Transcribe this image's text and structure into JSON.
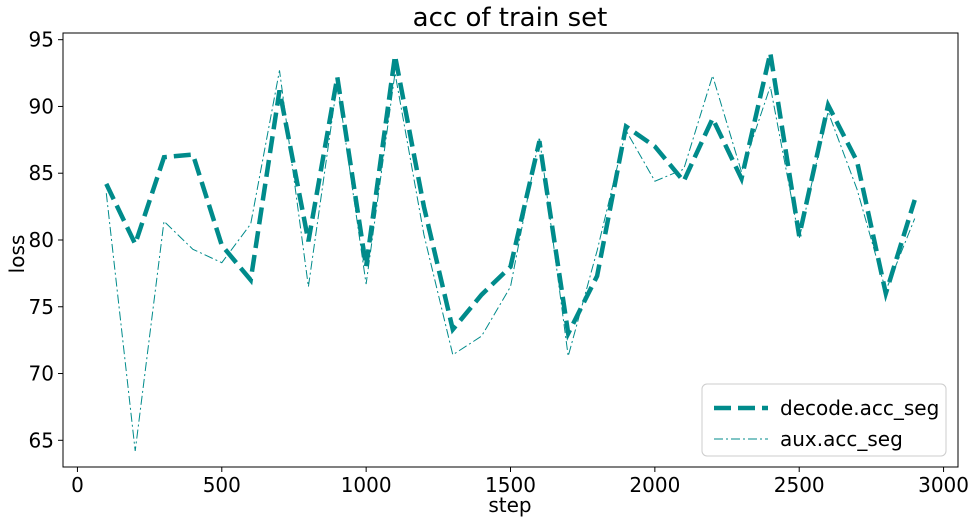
{
  "chart_data": {
    "type": "line",
    "title": "acc of train set",
    "xlabel": "step",
    "ylabel": "loss",
    "xlim": [
      -50,
      3050
    ],
    "ylim": [
      63,
      95.5
    ],
    "xticks": [
      0,
      500,
      1000,
      1500,
      2000,
      2500,
      3000
    ],
    "yticks": [
      65,
      70,
      75,
      80,
      85,
      90,
      95
    ],
    "grid": false,
    "legend_position": "lower-right",
    "x": [
      100,
      200,
      300,
      400,
      500,
      600,
      700,
      800,
      900,
      1000,
      1100,
      1200,
      1300,
      1400,
      1500,
      1600,
      1700,
      1800,
      1900,
      2000,
      2100,
      2200,
      2300,
      2400,
      2500,
      2600,
      2700,
      2800,
      2900
    ],
    "series": [
      {
        "name": "decode.acc_seg",
        "style": "dashed",
        "color": "#008b8b",
        "values": [
          84.2,
          79.7,
          86.2,
          86.4,
          79.6,
          77.0,
          91.2,
          79.9,
          92.2,
          78.0,
          93.8,
          82.5,
          73.3,
          75.9,
          78.0,
          87.4,
          73.0,
          77.3,
          88.5,
          87.0,
          84.4,
          89.1,
          84.6,
          94.0,
          80.3,
          90.1,
          85.9,
          76.0,
          83.0
        ]
      },
      {
        "name": "aux.acc_seg",
        "style": "dashdot",
        "color": "#008b8b",
        "values": [
          83.5,
          64.2,
          81.4,
          79.3,
          78.3,
          81.2,
          92.7,
          76.5,
          91.8,
          76.7,
          92.5,
          80.4,
          71.4,
          72.8,
          76.5,
          87.7,
          71.3,
          79.2,
          88.2,
          84.4,
          85.3,
          92.3,
          85.1,
          91.5,
          80.1,
          89.6,
          83.8,
          76.2,
          81.6
        ]
      }
    ]
  }
}
